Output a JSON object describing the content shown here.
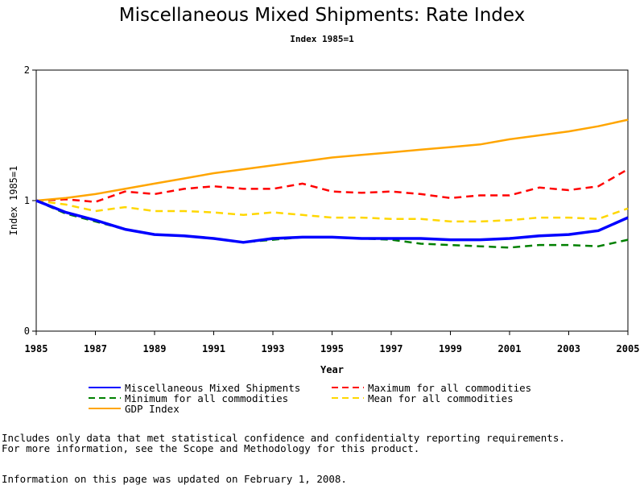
{
  "chart_data": {
    "type": "line",
    "title": "Miscellaneous Mixed Shipments: Rate Index",
    "subtitle": "Index 1985=1",
    "xlabel": "Year",
    "ylabel": "Index 1985=1",
    "xlim": [
      1985,
      2005
    ],
    "ylim": [
      0,
      2
    ],
    "x_ticks": [
      "1985",
      "1987",
      "1989",
      "1991",
      "1993",
      "1995",
      "1997",
      "1999",
      "2001",
      "2003",
      "2005"
    ],
    "y_ticks": [
      "0",
      "1",
      "2"
    ],
    "x": [
      1985,
      1986,
      1987,
      1988,
      1989,
      1990,
      1991,
      1992,
      1993,
      1994,
      1995,
      1996,
      1997,
      1998,
      1999,
      2000,
      2001,
      2002,
      2003,
      2004,
      2005
    ],
    "series": [
      {
        "name": "Minimum for all commodities",
        "color": "#008000",
        "dash": "dashed",
        "values": [
          1.0,
          0.9,
          0.84,
          0.78,
          0.74,
          0.73,
          0.71,
          0.68,
          0.7,
          0.72,
          0.72,
          0.71,
          0.7,
          0.67,
          0.66,
          0.65,
          0.64,
          0.66,
          0.66,
          0.65,
          0.7
        ]
      },
      {
        "name": "Maximum for all commodities",
        "color": "#ff0000",
        "dash": "dashed",
        "values": [
          1.0,
          1.01,
          0.99,
          1.07,
          1.05,
          1.09,
          1.11,
          1.09,
          1.09,
          1.13,
          1.07,
          1.06,
          1.07,
          1.05,
          1.02,
          1.04,
          1.04,
          1.1,
          1.08,
          1.11,
          1.24
        ]
      },
      {
        "name": "Mean for all commodities",
        "color": "#ffd700",
        "dash": "dashed",
        "values": [
          1.0,
          0.97,
          0.92,
          0.95,
          0.92,
          0.92,
          0.91,
          0.89,
          0.91,
          0.89,
          0.87,
          0.87,
          0.86,
          0.86,
          0.84,
          0.84,
          0.85,
          0.87,
          0.87,
          0.86,
          0.94
        ]
      },
      {
        "name": "GDP Index",
        "color": "#ffa500",
        "dash": "solid",
        "values": [
          1.0,
          1.02,
          1.05,
          1.09,
          1.13,
          1.17,
          1.21,
          1.24,
          1.27,
          1.3,
          1.33,
          1.35,
          1.37,
          1.39,
          1.41,
          1.43,
          1.47,
          1.5,
          1.53,
          1.57,
          1.62
        ]
      },
      {
        "name": "Miscellaneous Mixed Shipments",
        "color": "#0000ff",
        "dash": "solid",
        "values": [
          1.0,
          0.91,
          0.85,
          0.78,
          0.74,
          0.73,
          0.71,
          0.68,
          0.71,
          0.72,
          0.72,
          0.71,
          0.71,
          0.71,
          0.7,
          0.7,
          0.71,
          0.73,
          0.74,
          0.77,
          0.87
        ]
      }
    ],
    "legend": [
      {
        "label": "Miscellaneous Mixed Shipments",
        "color": "#0000ff",
        "dash": "solid"
      },
      {
        "label": "Maximum for all commodities",
        "color": "#ff0000",
        "dash": "dashed"
      },
      {
        "label": "Minimum for all commodities",
        "color": "#008000",
        "dash": "dashed"
      },
      {
        "label": "Mean for all commodities",
        "color": "#ffd700",
        "dash": "dashed"
      },
      {
        "label": "GDP Index",
        "color": "#ffa500",
        "dash": "solid"
      }
    ],
    "legend_position": "bottom",
    "grid": false
  },
  "notes": {
    "line1": "Includes only data that met statistical confidence and confidentialty reporting requirements.",
    "line2": "For more information, see the Scope and Methodology for this product.",
    "updated": "Information on this page was updated on February 1, 2008."
  }
}
